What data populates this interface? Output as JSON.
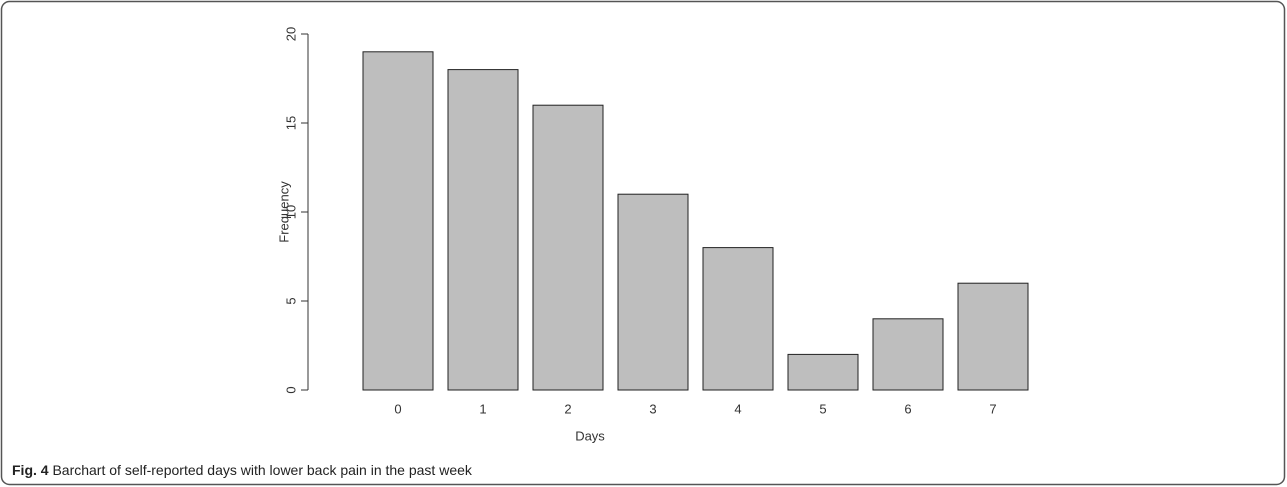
{
  "chart_data": {
    "type": "bar",
    "x_label": "Days",
    "y_label": "Frequency",
    "categories": [
      "0",
      "1",
      "2",
      "3",
      "4",
      "5",
      "6",
      "7"
    ],
    "values": [
      19,
      18,
      16,
      11,
      8,
      2,
      4,
      6
    ],
    "color": "#bebebe",
    "ylim": [
      0,
      20
    ],
    "yticks": [
      0,
      5,
      10,
      15,
      20
    ]
  },
  "caption": {
    "label": "Fig. 4",
    "text": "Barchart of self-reported days with lower back pain in the past week"
  }
}
